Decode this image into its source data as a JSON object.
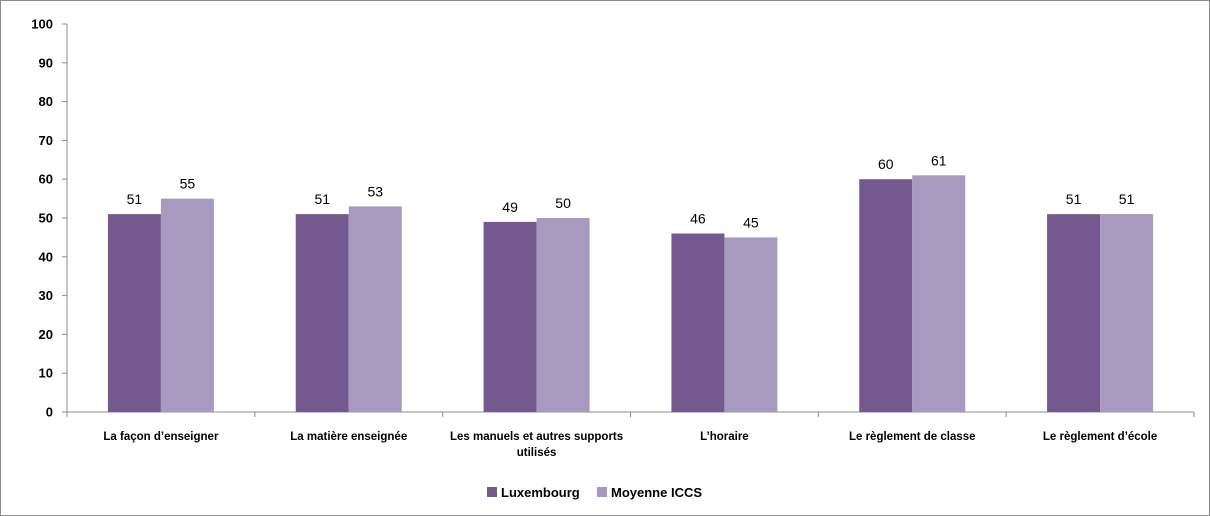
{
  "chart_data": {
    "type": "bar",
    "title": "",
    "xlabel": "",
    "ylabel": "",
    "ylim": [
      0,
      100
    ],
    "yticks": [
      0,
      10,
      20,
      30,
      40,
      50,
      60,
      70,
      80,
      90,
      100
    ],
    "grid": false,
    "legend_position": "bottom",
    "categories": [
      [
        "La façon d’enseigner"
      ],
      [
        "La matière enseignée"
      ],
      [
        "Les manuels et autres supports",
        "utilisés"
      ],
      [
        "L’horaire"
      ],
      [
        "Le règlement de classe"
      ],
      [
        "Le règlement d’école"
      ]
    ],
    "series": [
      {
        "name": "Luxembourg",
        "color": "#74598f",
        "values": [
          51,
          51,
          49,
          46,
          60,
          51
        ]
      },
      {
        "name": "Moyenne ICCS",
        "color": "#a899c0",
        "values": [
          55,
          53,
          50,
          45,
          61,
          51
        ]
      }
    ]
  }
}
